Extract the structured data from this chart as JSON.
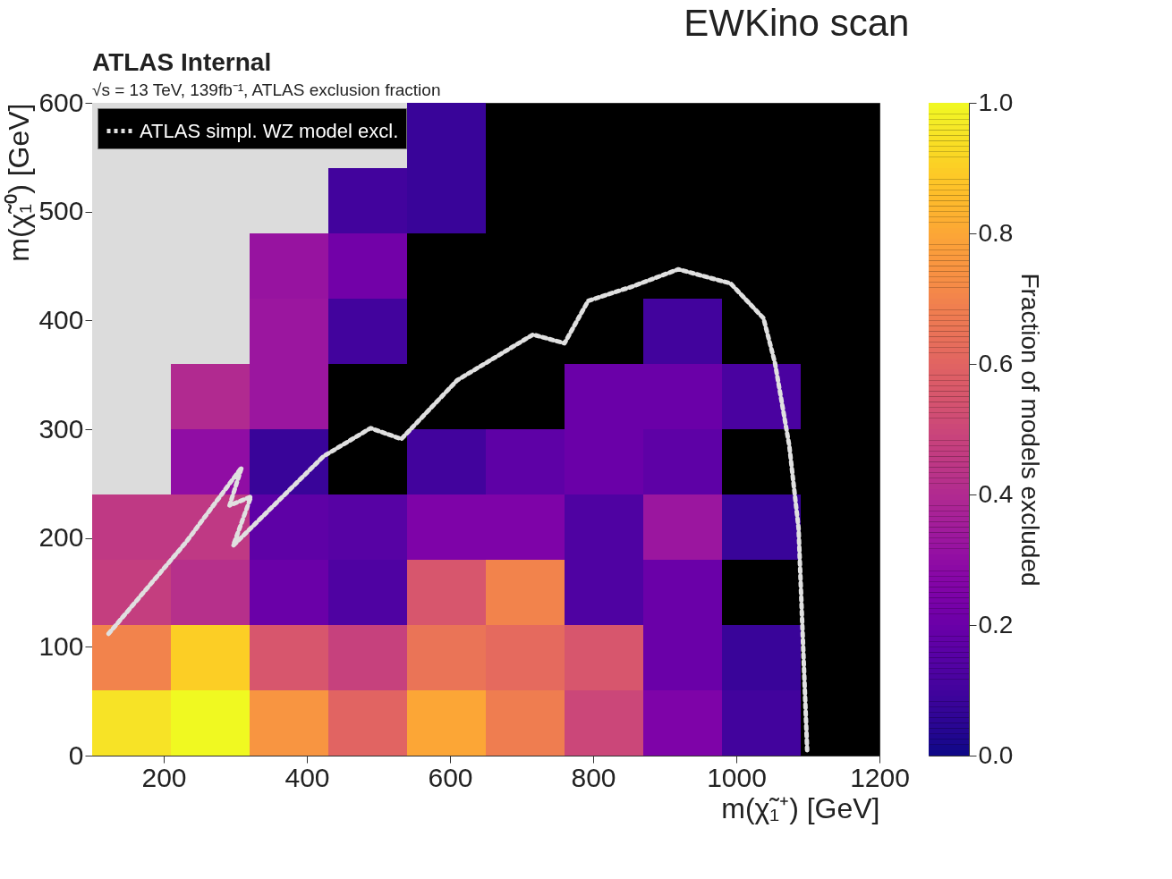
{
  "chart_data": {
    "type": "heatmap",
    "title": "EWKino scan",
    "annotations": [
      "ATLAS Internal",
      "√s = 13 TeV, 139fb⁻¹, ATLAS exclusion fraction"
    ],
    "xlabel": "m(χ̃₁⁺) [GeV]",
    "ylabel": "m(χ̃₁⁰) [GeV]",
    "clabel": "Fraction of models excluded",
    "xlim": [
      100,
      1200
    ],
    "xticks": [
      200,
      400,
      600,
      800,
      1000,
      1200
    ],
    "ylim": [
      0,
      600
    ],
    "yticks": [
      0,
      100,
      200,
      300,
      400,
      500,
      600
    ],
    "clim": [
      0,
      1
    ],
    "cticks": [
      {
        "value": 0,
        "label": "0.0"
      },
      0.2,
      0.4,
      0.6,
      0.8,
      {
        "value": 1,
        "label": "1.0"
      }
    ],
    "cells": [
      [
        null,
        null,
        null,
        null,
        0.08,
        null,
        null,
        null,
        null,
        null
      ],
      [
        null,
        null,
        null,
        0.1,
        0.08,
        null,
        null,
        null,
        null,
        null
      ],
      [
        null,
        null,
        0.32,
        0.22,
        null,
        null,
        null,
        null,
        null,
        null
      ],
      [
        null,
        null,
        0.33,
        0.1,
        null,
        null,
        null,
        0.1,
        null,
        null
      ],
      [
        null,
        0.4,
        0.33,
        null,
        null,
        null,
        0.2,
        0.2,
        0.12,
        null
      ],
      [
        null,
        0.3,
        0.08,
        null,
        0.1,
        0.17,
        0.2,
        0.17,
        null,
        null
      ],
      [
        0.45,
        0.45,
        0.17,
        0.15,
        0.25,
        0.25,
        0.13,
        0.33,
        0.08,
        null
      ],
      [
        0.47,
        0.42,
        0.2,
        0.13,
        0.55,
        0.7,
        0.13,
        0.2,
        null,
        null
      ],
      [
        0.7,
        0.9,
        0.55,
        0.48,
        0.65,
        0.62,
        0.55,
        0.2,
        0.08,
        null
      ],
      [
        0.95,
        1.0,
        0.75,
        0.6,
        0.8,
        0.68,
        0.5,
        0.25,
        0.1,
        null
      ]
    ],
    "series": [
      {
        "name": "ATLAS simpl. WZ model excl.",
        "type": "line",
        "color": "#e0e0e0",
        "line_style": "dotted",
        "x": [
          123,
          231,
          309,
          292,
          322,
          297,
          423,
          489,
          532,
          610,
          716,
          760,
          793,
          854,
          919,
          992,
          1038,
          1054,
          1074,
          1087,
          1099
        ],
        "values": [
          112,
          196,
          265,
          230,
          238,
          193,
          275,
          301,
          291,
          345,
          387,
          379,
          418,
          431,
          447,
          434,
          402,
          361,
          285,
          209,
          5
        ]
      }
    ],
    "legend": "top left",
    "grid": false
  }
}
